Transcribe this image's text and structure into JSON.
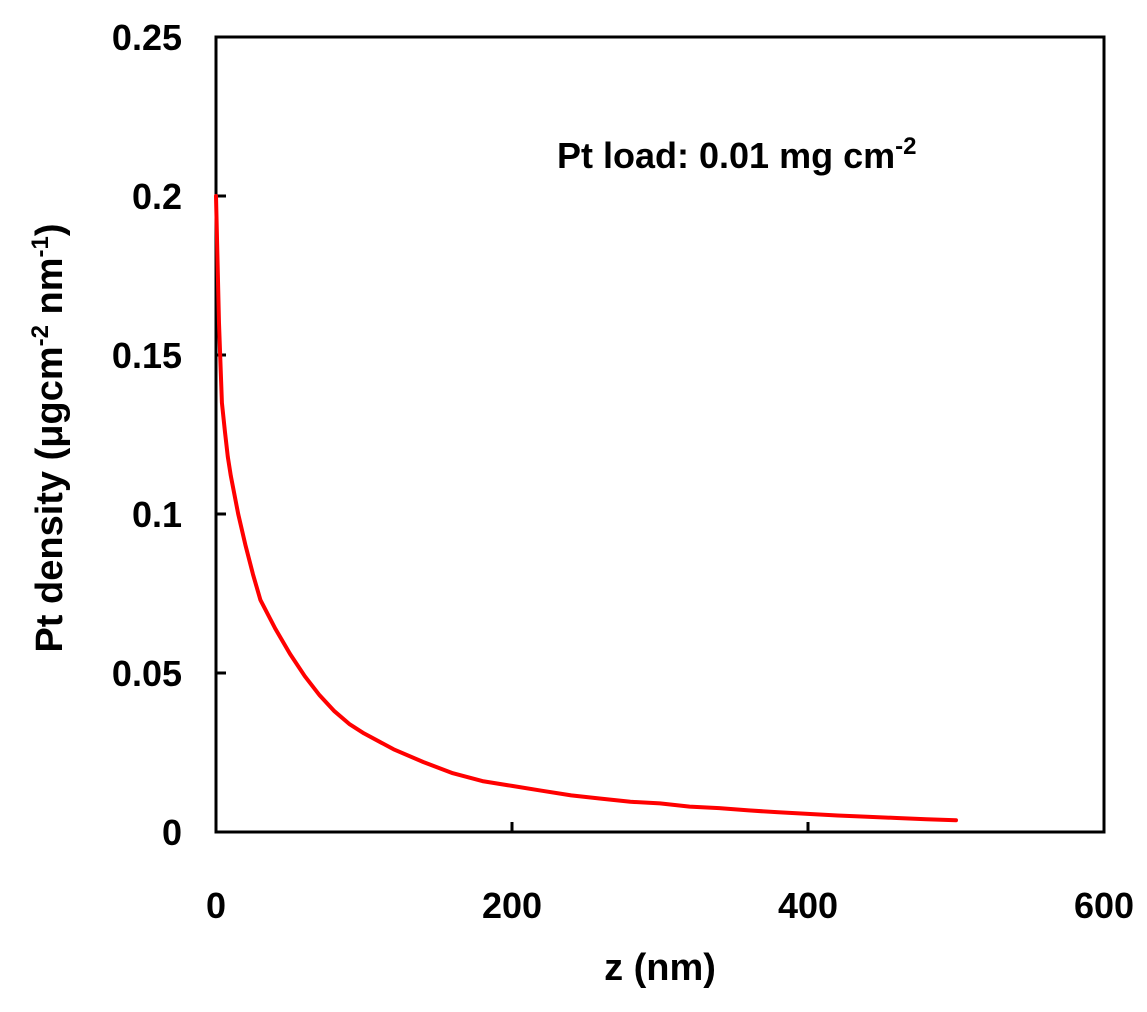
{
  "chart_data": {
    "type": "line",
    "annotation": {
      "text": "Pt load:  0.01 mg cm",
      "superscript": "-2"
    },
    "xlabel": "z (nm)",
    "ylabel_parts": [
      {
        "text": "Pt density (μgcm",
        "sup": false
      },
      {
        "text": "-2",
        "sup": true
      },
      {
        "text": " nm",
        "sup": false
      },
      {
        "text": "-1",
        "sup": true
      },
      {
        "text": ")",
        "sup": false
      }
    ],
    "xlim": [
      0,
      600
    ],
    "ylim": [
      0,
      0.25
    ],
    "xticks": [
      0,
      200,
      400,
      600
    ],
    "xtick_labels": [
      "0",
      "200",
      "400",
      "600"
    ],
    "yticks": [
      0,
      0.05,
      0.1,
      0.15,
      0.2,
      0.25
    ],
    "ytick_labels": [
      "0",
      "0.05",
      "0.1",
      "0.15",
      "0.2",
      "0.25"
    ],
    "grid": false,
    "legend": "none",
    "series": [
      {
        "color": "#ff0000",
        "x": [
          0,
          2,
          4,
          6,
          8,
          10,
          15,
          20,
          25,
          30,
          40,
          50,
          60,
          70,
          80,
          90,
          100,
          120,
          140,
          160,
          180,
          200,
          220,
          240,
          260,
          280,
          300,
          320,
          340,
          360,
          380,
          400,
          420,
          440,
          460,
          480,
          500
        ],
        "y": [
          0.2,
          0.16,
          0.135,
          0.126,
          0.118,
          0.112,
          0.1,
          0.09,
          0.081,
          0.073,
          0.064,
          0.056,
          0.049,
          0.043,
          0.038,
          0.034,
          0.031,
          0.026,
          0.022,
          0.0185,
          0.016,
          0.0145,
          0.013,
          0.0115,
          0.0105,
          0.0095,
          0.009,
          0.008,
          0.0075,
          0.0068,
          0.0062,
          0.0057,
          0.0052,
          0.0048,
          0.0044,
          0.004,
          0.0037
        ]
      }
    ]
  }
}
